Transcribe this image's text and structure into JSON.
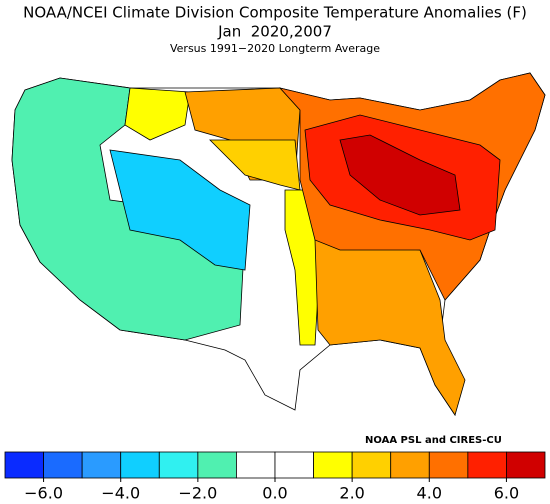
{
  "title": "NOAA/NCEI Climate Division Composite Temperature Anomalies (F)",
  "period": "Jan  2020,2007",
  "subtitle": "Versus 1991−2020 Longterm Average",
  "credit": "NOAA PSL and CIRES-CU",
  "colorbar": {
    "lim": [
      -7,
      7
    ],
    "bounds": [
      -7,
      -6,
      -5,
      -4,
      -3,
      -2,
      -1,
      0,
      1,
      2,
      3,
      4,
      5,
      6,
      7
    ],
    "colors": [
      "#0a2bff",
      "#1a6bff",
      "#2a9bff",
      "#10cfff",
      "#30f0f0",
      "#50f0b0",
      "#ffffff",
      "#ffffff",
      "#ffff00",
      "#ffd000",
      "#ffa000",
      "#ff7000",
      "#ff2000",
      "#d00000"
    ],
    "ticks": [
      {
        "value": -6,
        "label": "−6.0"
      },
      {
        "value": -4,
        "label": "−4.0"
      },
      {
        "value": -2,
        "label": "−2.0"
      },
      {
        "value": 0,
        "label": "0.0"
      },
      {
        "value": 2,
        "label": "2.0"
      },
      {
        "value": 4,
        "label": "4.0"
      },
      {
        "value": 6,
        "label": "6.0"
      }
    ]
  }
}
